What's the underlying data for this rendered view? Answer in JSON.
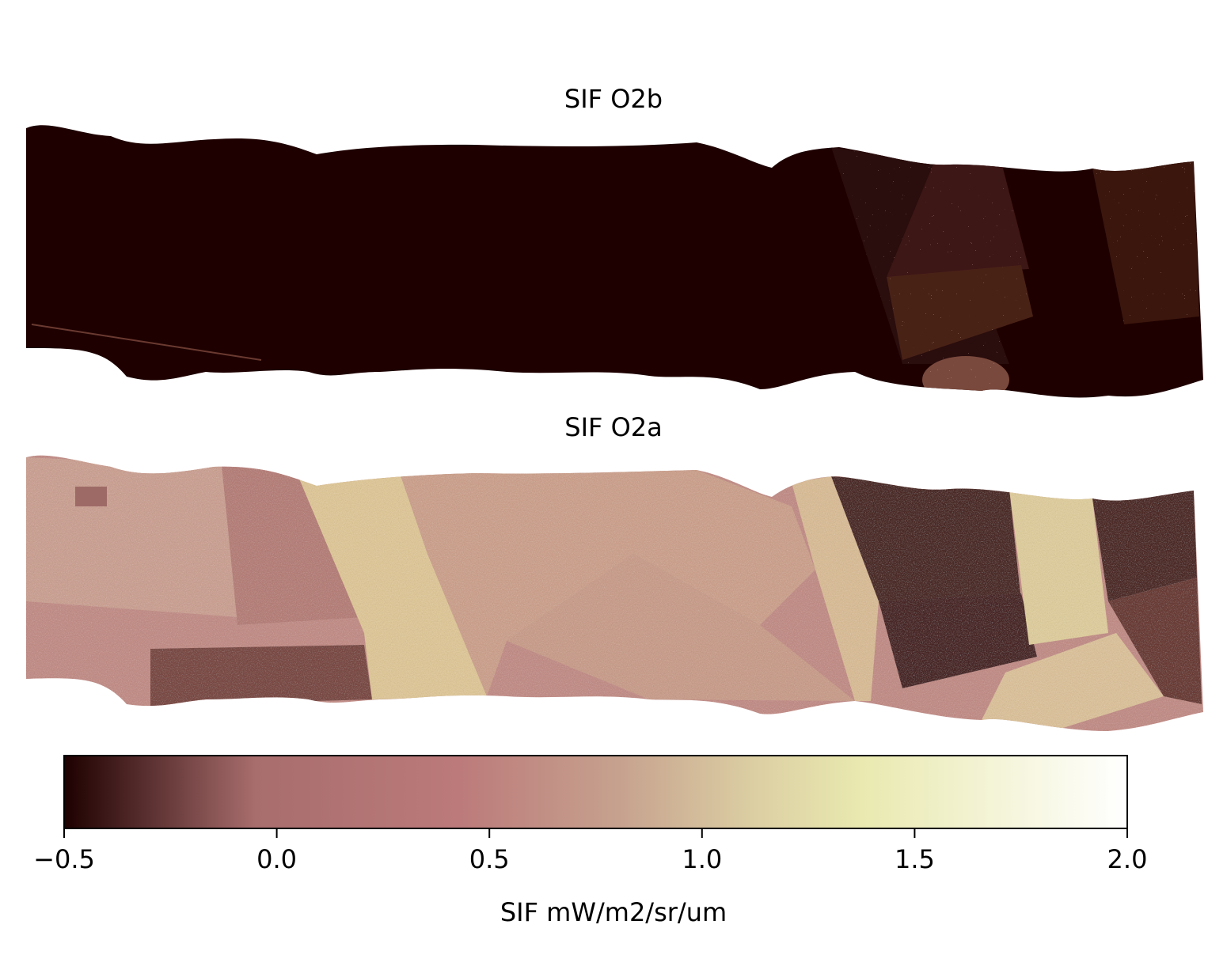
{
  "chart_data": [
    {
      "type": "heatmap",
      "title": "SIF O2b",
      "colormap": "pink",
      "vmin": -0.5,
      "vmax": 2.0,
      "description_of_values": "mostly near -0.5 (dark); scattered brighter speckle in right-hand fields",
      "field_levels": [
        -0.5,
        -0.5,
        -0.5,
        -0.45,
        -0.2,
        0.1,
        -0.4,
        -0.1
      ]
    },
    {
      "type": "heatmap",
      "title": "SIF O2a",
      "colormap": "pink",
      "vmin": -0.5,
      "vmax": 2.0,
      "field_levels": [
        0.55,
        0.45,
        1.25,
        0.8,
        0.85,
        1.1,
        -0.1,
        -0.15,
        1.2,
        1.05,
        -0.15,
        -0.1
      ]
    }
  ],
  "colorbar": {
    "ticks": [
      "−0.5",
      "0.0",
      "0.5",
      "1.0",
      "1.5",
      "2.0"
    ],
    "tick_values": [
      -0.5,
      0.0,
      0.5,
      1.0,
      1.5,
      2.0
    ],
    "label": "SIF mW/m2/sr/um",
    "colors": {
      "c0": "#1e0000",
      "c1": "#a86d6d",
      "c2": "#bc7a7a",
      "c3": "#c6a18e",
      "c4": "#dccfa3",
      "c5": "#e9e9b0",
      "c6": "#ffffff"
    }
  }
}
